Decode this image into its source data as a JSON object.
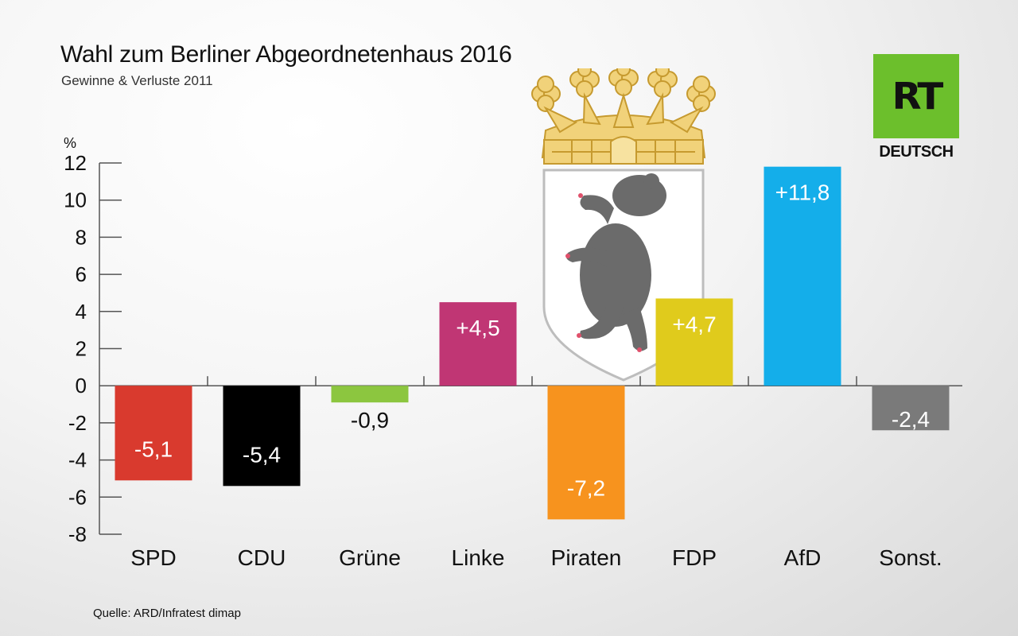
{
  "header": {
    "title": "Wahl zum Berliner Abgeordnetenhaus 2016",
    "subtitle": "Gewinne & Verluste 2011"
  },
  "footer": {
    "source": "Quelle: ARD/Infratest dimap"
  },
  "logo": {
    "mark": "RT",
    "text": "DEUTSCH",
    "color": "#6cbf2c"
  },
  "emblem": {
    "icon": "berlin-bear-coat-of-arms-icon"
  },
  "chart_data": {
    "type": "bar",
    "title": "Wahl zum Berliner Abgeordnetenhaus 2016",
    "subtitle": "Gewinne & Verluste 2011",
    "ylabel": "%",
    "xlabel": "",
    "ylim": [
      -8,
      12
    ],
    "yticks": [
      "12",
      "10",
      "8",
      "6",
      "4",
      "2",
      "0",
      "-2",
      "-4",
      "-6",
      "-8"
    ],
    "categories": [
      "SPD",
      "CDU",
      "Grüne",
      "Linke",
      "Piraten",
      "FDP",
      "AfD",
      "Sonst."
    ],
    "values": [
      -5.1,
      -5.4,
      -0.9,
      4.5,
      -7.2,
      4.7,
      11.8,
      -2.4
    ],
    "labels": [
      "-5,1",
      "-5,4",
      "-0,9",
      "+4,5",
      "-7,2",
      "+4,7",
      "+11,8",
      "-2,4"
    ],
    "colors": [
      "#d93a2e",
      "#000000",
      "#8cc63f",
      "#c03674",
      "#f7931e",
      "#e0cb1c",
      "#14aeea",
      "#7a7a7a"
    ],
    "label_colors": [
      "#ffffff",
      "#ffffff",
      "#111111",
      "#ffffff",
      "#ffffff",
      "#ffffff",
      "#ffffff",
      "#ffffff"
    ],
    "grid": false
  }
}
